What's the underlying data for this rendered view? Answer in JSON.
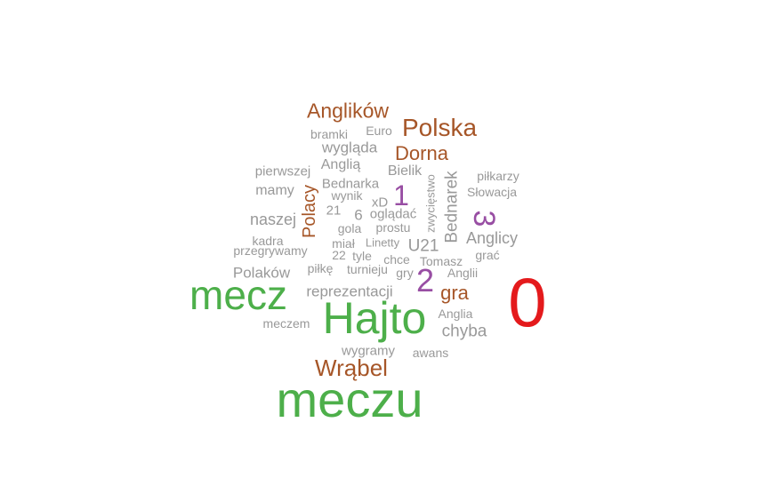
{
  "palette": {
    "gray": "#999999",
    "brown": "#a65628",
    "purple": "#984ea3",
    "green": "#4daf4a",
    "red": "#e41a1c"
  },
  "words": [
    {
      "text": "0",
      "color": "red"
    },
    {
      "text": "meczu",
      "color": "green"
    },
    {
      "text": "Hajto",
      "color": "green"
    },
    {
      "text": "mecz",
      "color": "green"
    },
    {
      "text": "Wrąbel",
      "color": "brown"
    },
    {
      "text": "Polska",
      "color": "brown"
    },
    {
      "text": "Anglików",
      "color": "brown"
    },
    {
      "text": "Dorna",
      "color": "brown"
    },
    {
      "text": "gra",
      "color": "brown"
    },
    {
      "text": "Polacy",
      "color": "brown"
    },
    {
      "text": "3",
      "color": "purple"
    },
    {
      "text": "2",
      "color": "purple"
    },
    {
      "text": "1",
      "color": "purple"
    },
    {
      "text": "Bednarek",
      "color": "gray"
    },
    {
      "text": "chyba",
      "color": "gray"
    },
    {
      "text": "Anglicy",
      "color": "gray"
    },
    {
      "text": "reprezentacji",
      "color": "gray"
    },
    {
      "text": "Polaków",
      "color": "gray"
    },
    {
      "text": "naszej",
      "color": "gray"
    },
    {
      "text": "mamy",
      "color": "gray"
    },
    {
      "text": "wygląda",
      "color": "gray"
    },
    {
      "text": "Anglią",
      "color": "gray"
    },
    {
      "text": "U21",
      "color": "gray"
    },
    {
      "text": "Bielik",
      "color": "gray"
    },
    {
      "text": "pierwszej",
      "color": "gray"
    },
    {
      "text": "Bednarka",
      "color": "gray"
    },
    {
      "text": "bramki",
      "color": "gray"
    },
    {
      "text": "Euro",
      "color": "gray"
    },
    {
      "text": "wynik",
      "color": "gray"
    },
    {
      "text": "xD",
      "color": "gray"
    },
    {
      "text": "21",
      "color": "gray"
    },
    {
      "text": "6",
      "color": "gray"
    },
    {
      "text": "oglądać",
      "color": "gray"
    },
    {
      "text": "gola",
      "color": "gray"
    },
    {
      "text": "prostu",
      "color": "gray"
    },
    {
      "text": "zwycięstwo",
      "color": "gray"
    },
    {
      "text": "piłkarzy",
      "color": "gray"
    },
    {
      "text": "Słowacja",
      "color": "gray"
    },
    {
      "text": "kadra",
      "color": "gray"
    },
    {
      "text": "przegrywamy",
      "color": "gray"
    },
    {
      "text": "miał",
      "color": "gray"
    },
    {
      "text": "Linetty",
      "color": "gray"
    },
    {
      "text": "22",
      "color": "gray"
    },
    {
      "text": "tyle",
      "color": "gray"
    },
    {
      "text": "chce",
      "color": "gray"
    },
    {
      "text": "Tomasz",
      "color": "gray"
    },
    {
      "text": "grać",
      "color": "gray"
    },
    {
      "text": "piłkę",
      "color": "gray"
    },
    {
      "text": "turnieju",
      "color": "gray"
    },
    {
      "text": "gry",
      "color": "gray"
    },
    {
      "text": "Anglii",
      "color": "gray"
    },
    {
      "text": "Anglia",
      "color": "gray"
    },
    {
      "text": "meczem",
      "color": "gray"
    },
    {
      "text": "wygramy",
      "color": "gray"
    },
    {
      "text": "awans",
      "color": "gray"
    }
  ]
}
